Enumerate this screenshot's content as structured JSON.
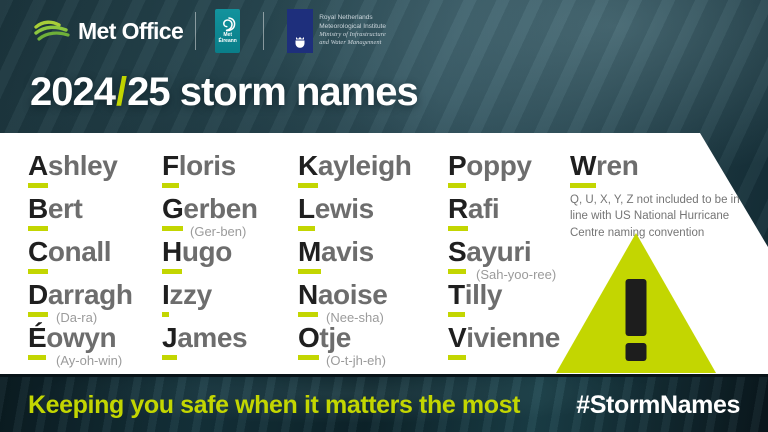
{
  "header": {
    "met_office_label": "Met Office",
    "met_eireann_label_line1": "Met",
    "met_eireann_label_line2": "Éireann",
    "knmi_line1": "Royal Netherlands",
    "knmi_line2": "Meteorological Institute",
    "knmi_line3": "Ministry of Infrastructure",
    "knmi_line4": "and Water Management"
  },
  "title": {
    "part_year": "2024",
    "part_slash": "/",
    "part_rest": "25 storm names"
  },
  "names": {
    "columns": [
      [
        {
          "name": "Ashley"
        },
        {
          "name": "Bert"
        },
        {
          "name": "Conall"
        },
        {
          "name": "Darragh",
          "pron": "(Da-ra)"
        },
        {
          "name": "Éowyn",
          "pron": "(Ay-oh-win)"
        }
      ],
      [
        {
          "name": "Floris"
        },
        {
          "name": "Gerben",
          "pron": "(Ger-ben)"
        },
        {
          "name": "Hugo"
        },
        {
          "name": "Izzy"
        },
        {
          "name": "James"
        }
      ],
      [
        {
          "name": "Kayleigh"
        },
        {
          "name": "Lewis"
        },
        {
          "name": "Mavis"
        },
        {
          "name": "Naoise",
          "pron": "(Nee-sha)"
        },
        {
          "name": "Otje",
          "pron": "(O-t-jh-eh)"
        }
      ],
      [
        {
          "name": "Poppy"
        },
        {
          "name": "Rafi"
        },
        {
          "name": "Sayuri",
          "pron": "(Sah-yoo-ree)"
        },
        {
          "name": "Tilly"
        },
        {
          "name": "Vivienne"
        }
      ],
      [
        {
          "name": "Wren"
        }
      ]
    ],
    "note": "Q, U, X, Y, Z not included to be in line with US National Hurricane Centre naming convention"
  },
  "footer": {
    "tagline": "Keeping you safe when it matters the most",
    "hashtag": "#StormNames"
  },
  "icons": {
    "met_office_logo": "green-swoosh-waves",
    "met_eireann_logo": "cyclone-spiral",
    "knmi_logo": "royal-crest",
    "warning": "exclamation-triangle"
  },
  "colors": {
    "lime": "#c3d601",
    "panel_white": "#ffffff",
    "initial_letter": "#1f1f1f",
    "name_gray": "#6d6d6d",
    "pronunciation_gray": "#9b9b9b",
    "sea_teal": "#2a4953"
  }
}
